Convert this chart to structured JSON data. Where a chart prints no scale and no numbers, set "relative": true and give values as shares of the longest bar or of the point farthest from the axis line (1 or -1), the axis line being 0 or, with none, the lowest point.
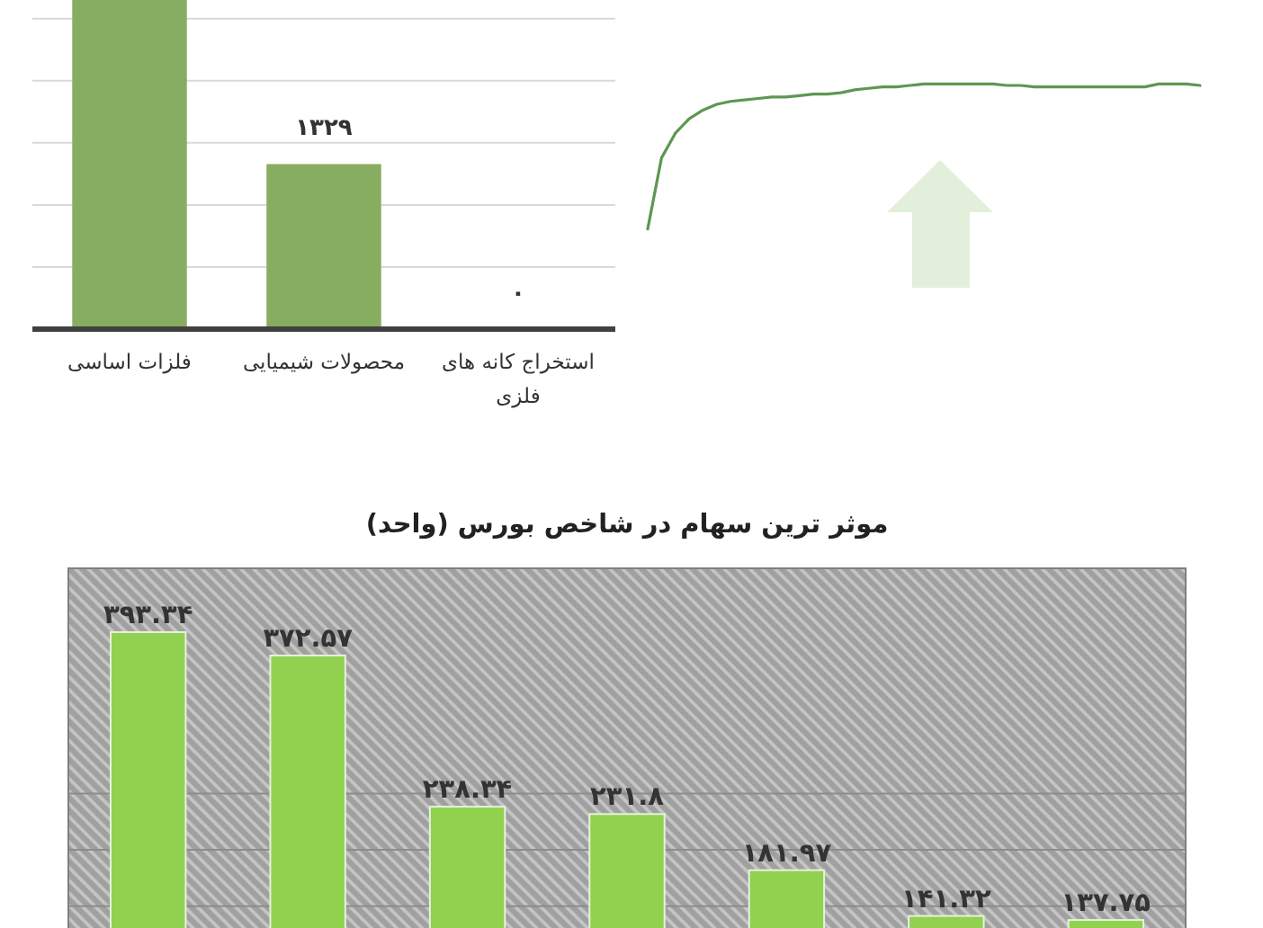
{
  "chart_data": [
    {
      "type": "bar",
      "categories": [
        "فلزات اساسی",
        "محصولات شیمیایی",
        "استخراج کانه های فلزی"
      ],
      "values": [
        2650,
        1329,
        0
      ],
      "color": "#87ad60",
      "value_labels": [
        null,
        "۱۳۲۹",
        "۰"
      ],
      "ylim": [
        0,
        2650
      ],
      "yticks": [
        {
          "value": 500,
          "label": null
        },
        {
          "value": 1000,
          "label": null
        },
        {
          "value": 1500,
          "label": null
        },
        {
          "value": 2000,
          "label": null
        },
        {
          "value": 2500,
          "label": null
        }
      ],
      "grid": "y",
      "tick_labels": "x"
    },
    {
      "type": "line",
      "relative": true,
      "categories": [
        null,
        null,
        null,
        null,
        null,
        null,
        null,
        null,
        null,
        null,
        null,
        null,
        null,
        null,
        null,
        null,
        null,
        null,
        null,
        null,
        null,
        null,
        null,
        null,
        null,
        null,
        null,
        null,
        null,
        null,
        null,
        null,
        null,
        null,
        null,
        null,
        null,
        null,
        null,
        null,
        null
      ],
      "values": [
        0,
        0.49,
        0.66,
        0.76,
        0.82,
        0.86,
        0.88,
        0.89,
        0.9,
        0.91,
        0.91,
        0.92,
        0.93,
        0.93,
        0.94,
        0.96,
        0.97,
        0.98,
        0.98,
        0.99,
        1,
        1,
        1,
        1,
        1,
        1,
        0.99,
        0.99,
        0.98,
        0.98,
        0.98,
        0.98,
        0.98,
        0.98,
        0.98,
        0.98,
        0.98,
        1,
        1,
        1,
        0.99
      ],
      "color": "#5e9752",
      "tick_labels": false
    },
    {
      "type": "bar",
      "title": "موثر ترین سهام در شاخص بورس (واحد)",
      "categories": [
        null,
        null,
        null,
        null,
        null,
        null,
        null
      ],
      "values": [
        393.34,
        372.57,
        238.34,
        231.8,
        181.97,
        141.32,
        137.75
      ],
      "color": "#92d050",
      "value_labels": [
        "۳۹۳.۳۴",
        "۳۷۲.۵۷",
        "۲۳۸.۳۴",
        "۲۳۱.۸",
        "۱۸۱.۹۷",
        "۱۴۱.۳۲",
        "۱۳۷.۷۵"
      ],
      "ylim": [
        0,
        450
      ],
      "yticks": [
        {
          "value": 150,
          "label": null
        },
        {
          "value": 200,
          "label": null
        },
        {
          "value": 250,
          "label": null
        }
      ],
      "grid": "y",
      "tick_labels": false
    }
  ]
}
